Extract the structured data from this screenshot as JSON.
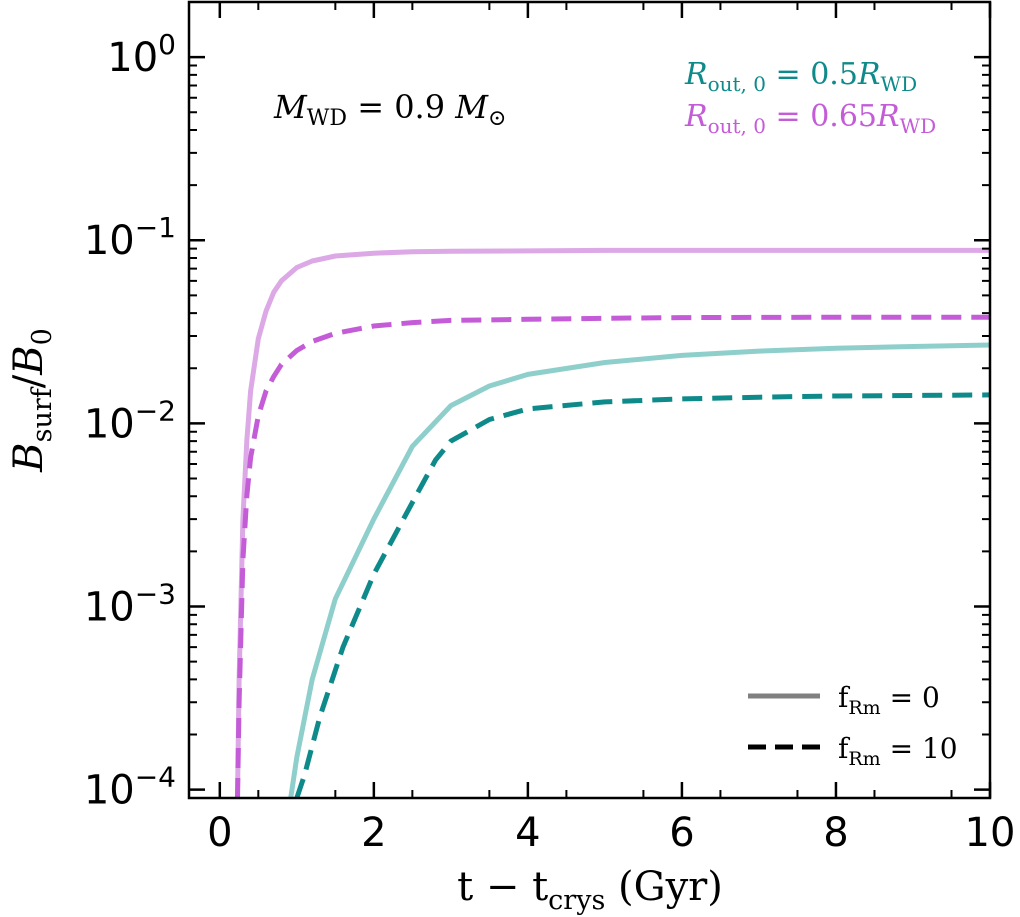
{
  "chart_data": {
    "type": "line",
    "yscale": "log",
    "xlabel": {
      "base": "t − t",
      "sub": "crys",
      "tail": " (Gyr)"
    },
    "ylabel": {
      "b1": "B",
      "sub1": "surf",
      "slash": "/",
      "b2": "B",
      "sub2": "0"
    },
    "xlim": [
      -0.4,
      10
    ],
    "ylim": [
      9e-05,
      2.0
    ],
    "xticks": [
      0,
      2,
      4,
      6,
      8,
      10
    ],
    "xtick_labels": [
      "0",
      "2",
      "4",
      "6",
      "8",
      "10"
    ],
    "yticks": [
      {
        "value": 1,
        "base": "10",
        "exp": "0"
      },
      {
        "value": 0.1,
        "base": "10",
        "exp": "−1"
      },
      {
        "value": 0.01,
        "base": "10",
        "exp": "−2"
      },
      {
        "value": 0.001,
        "base": "10",
        "exp": "−3"
      },
      {
        "value": 0.0001,
        "base": "10",
        "exp": "−4"
      }
    ],
    "mass_annotation": {
      "m": "M",
      "sub": "WD",
      "eq": " = 0.9 ",
      "m2": "M",
      "sun": "⊙"
    },
    "radius_legend": [
      {
        "r": "R",
        "sub": "out, 0",
        "eq": " = 0.5",
        "rw": "R",
        "sub2": "WD",
        "color": "#0f8a8a"
      },
      {
        "r": "R",
        "sub": "out, 0",
        "eq": " = 0.65",
        "rw": "R",
        "sub2": "WD",
        "color": "#c45cd8"
      }
    ],
    "style_legend": [
      {
        "f": "f",
        "sub": "Rm",
        "eq": " = 0",
        "dash": "solid",
        "color": "#808080"
      },
      {
        "f": "f",
        "sub": "Rm",
        "eq": " = 10",
        "dash": "dashed",
        "color": "#000000"
      }
    ],
    "series": [
      {
        "name": "R_out,0 = 0.65 R_WD, f_Rm = 0",
        "color": "#dca8e6",
        "dash": "solid",
        "x": [
          0.23,
          0.25,
          0.3,
          0.35,
          0.4,
          0.5,
          0.6,
          0.7,
          0.8,
          1.0,
          1.2,
          1.5,
          2.0,
          2.5,
          3.0,
          4.0,
          5.0,
          6.0,
          8.0,
          10.0
        ],
        "y": [
          9e-05,
          0.0004,
          0.003,
          0.008,
          0.015,
          0.029,
          0.041,
          0.052,
          0.06,
          0.071,
          0.077,
          0.082,
          0.085,
          0.0865,
          0.087,
          0.0875,
          0.088,
          0.088,
          0.088,
          0.088
        ]
      },
      {
        "name": "R_out,0 = 0.65 R_WD, f_Rm = 10",
        "color": "#c45cd8",
        "dash": "dashed",
        "x": [
          0.23,
          0.25,
          0.3,
          0.35,
          0.4,
          0.5,
          0.6,
          0.7,
          0.8,
          1.0,
          1.2,
          1.5,
          2.0,
          2.5,
          3.0,
          4.0,
          5.0,
          6.0,
          8.0,
          10.0
        ],
        "y": [
          9e-05,
          0.0003,
          0.0018,
          0.004,
          0.0065,
          0.011,
          0.015,
          0.018,
          0.021,
          0.025,
          0.028,
          0.031,
          0.034,
          0.0355,
          0.0365,
          0.037,
          0.0375,
          0.0378,
          0.038,
          0.038
        ]
      },
      {
        "name": "R_out,0 = 0.5 R_WD, f_Rm = 0",
        "color": "#8ecfcc",
        "dash": "solid",
        "x": [
          0.92,
          1.0,
          1.2,
          1.5,
          2.0,
          2.5,
          3.0,
          3.5,
          4.0,
          5.0,
          6.0,
          7.0,
          8.0,
          9.0,
          10.0
        ],
        "y": [
          9e-05,
          0.00015,
          0.0004,
          0.0011,
          0.003,
          0.0075,
          0.0125,
          0.016,
          0.0185,
          0.0215,
          0.0235,
          0.0248,
          0.0257,
          0.0263,
          0.0268
        ]
      },
      {
        "name": "R_out,0 = 0.5 R_WD, f_Rm = 10",
        "color": "#0f8a8a",
        "dash": "dashed",
        "x": [
          1.0,
          1.1,
          1.3,
          1.6,
          2.0,
          2.5,
          2.8,
          3.0,
          3.5,
          4.0,
          5.0,
          6.0,
          7.0,
          8.0,
          9.0,
          10.0
        ],
        "y": [
          9e-05,
          0.00012,
          0.00025,
          0.0006,
          0.0015,
          0.0037,
          0.0063,
          0.008,
          0.0105,
          0.012,
          0.0131,
          0.0136,
          0.0139,
          0.0141,
          0.0142,
          0.0143
        ]
      }
    ]
  }
}
